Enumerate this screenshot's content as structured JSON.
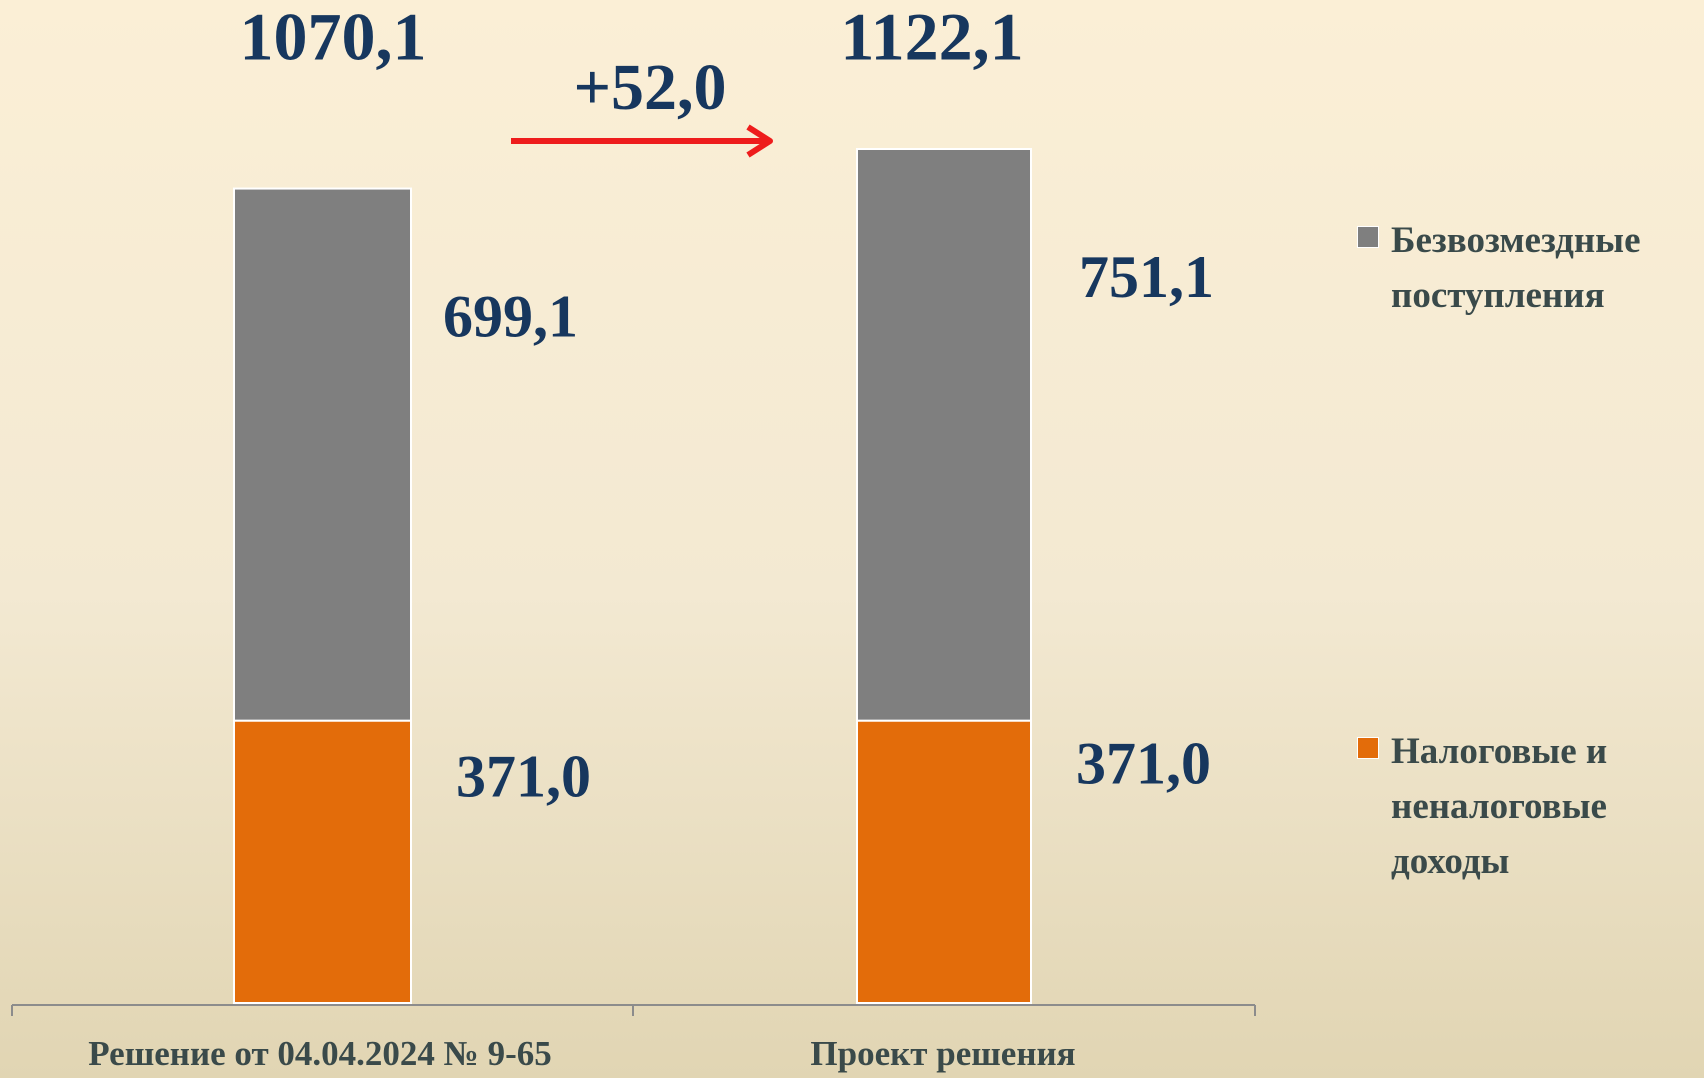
{
  "chart_data": {
    "type": "stacked_bar",
    "categories": [
      "Решение от 04.04.2024 № 9-65",
      "Проект решения"
    ],
    "series": [
      {
        "name": "Налоговые и неналоговые доходы",
        "color": "#e36c0a",
        "values": [
          371.0,
          371.0
        ],
        "value_labels": [
          "371,0",
          "371,0"
        ]
      },
      {
        "name": "Безвозмездные поступления",
        "color": "#7f7f7f",
        "values": [
          699.1,
          751.1
        ],
        "value_labels": [
          "699,1",
          "751,1"
        ]
      }
    ],
    "totals": [
      1070.1,
      1122.1
    ],
    "total_labels": [
      "1070,1",
      "1122,1"
    ],
    "annotation": {
      "value": 52.0,
      "label": "+52,0"
    }
  }
}
